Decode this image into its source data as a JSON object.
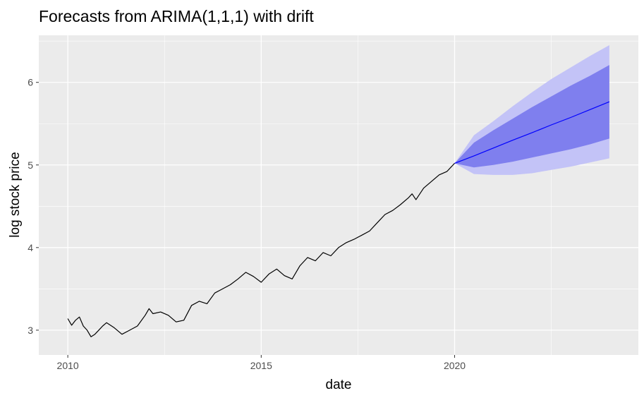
{
  "chart_data": {
    "type": "line",
    "title": "Forecasts from ARIMA(1,1,1) with drift",
    "xlabel": "date",
    "ylabel": "log stock price",
    "xlim": [
      2009.25,
      2024.75
    ],
    "ylim": [
      2.7,
      6.57
    ],
    "x_ticks": [
      2010,
      2015,
      2020
    ],
    "x_tick_labels": [
      "2010",
      "2015",
      "2020"
    ],
    "y_ticks": [
      3,
      4,
      5,
      6
    ],
    "y_tick_labels": [
      "3",
      "4",
      "5",
      "6"
    ],
    "grid": true,
    "legend": "none",
    "colors": {
      "panel": "#ebebeb",
      "grid_major": "#ffffff",
      "history_line": "#000000",
      "forecast_line": "#0000ff",
      "band_95": "#c3c3f7",
      "band_80": "#7f7fee"
    },
    "history": {
      "x": [
        2010.0,
        2010.1,
        2010.2,
        2010.3,
        2010.4,
        2010.5,
        2010.6,
        2010.7,
        2010.8,
        2010.9,
        2011.0,
        2011.2,
        2011.4,
        2011.6,
        2011.8,
        2012.0,
        2012.1,
        2012.2,
        2012.4,
        2012.6,
        2012.8,
        2013.0,
        2013.2,
        2013.4,
        2013.6,
        2013.8,
        2014.0,
        2014.2,
        2014.4,
        2014.6,
        2014.8,
        2015.0,
        2015.2,
        2015.4,
        2015.6,
        2015.8,
        2016.0,
        2016.2,
        2016.4,
        2016.6,
        2016.8,
        2017.0,
        2017.2,
        2017.4,
        2017.6,
        2017.8,
        2018.0,
        2018.2,
        2018.4,
        2018.6,
        2018.8,
        2018.9,
        2019.0,
        2019.2,
        2019.4,
        2019.6,
        2019.8,
        2020.0
      ],
      "y": [
        3.14,
        3.06,
        3.12,
        3.16,
        3.05,
        3.0,
        2.92,
        2.95,
        3.0,
        3.05,
        3.09,
        3.03,
        2.95,
        3.0,
        3.05,
        3.18,
        3.26,
        3.2,
        3.22,
        3.18,
        3.1,
        3.12,
        3.3,
        3.35,
        3.32,
        3.45,
        3.5,
        3.55,
        3.62,
        3.7,
        3.65,
        3.58,
        3.68,
        3.74,
        3.66,
        3.62,
        3.78,
        3.88,
        3.84,
        3.94,
        3.9,
        4.0,
        4.06,
        4.1,
        4.15,
        4.2,
        4.3,
        4.4,
        4.45,
        4.52,
        4.6,
        4.65,
        4.58,
        4.72,
        4.8,
        4.88,
        4.92,
        5.02
      ]
    },
    "forecast": {
      "x": [
        2020.0,
        2020.5,
        2021.0,
        2021.5,
        2022.0,
        2022.5,
        2023.0,
        2023.5,
        2024.0
      ],
      "mean": [
        5.02,
        5.11,
        5.205,
        5.3,
        5.39,
        5.485,
        5.575,
        5.67,
        5.765
      ],
      "lower_80": [
        5.02,
        4.97,
        5.0,
        5.04,
        5.09,
        5.14,
        5.19,
        5.25,
        5.32
      ],
      "upper_80": [
        5.02,
        5.27,
        5.42,
        5.56,
        5.7,
        5.83,
        5.96,
        6.08,
        6.21
      ],
      "lower_95": [
        5.02,
        4.89,
        4.88,
        4.88,
        4.9,
        4.94,
        4.98,
        5.03,
        5.08
      ],
      "upper_95": [
        5.02,
        5.36,
        5.53,
        5.71,
        5.88,
        6.04,
        6.18,
        6.32,
        6.45
      ]
    }
  }
}
